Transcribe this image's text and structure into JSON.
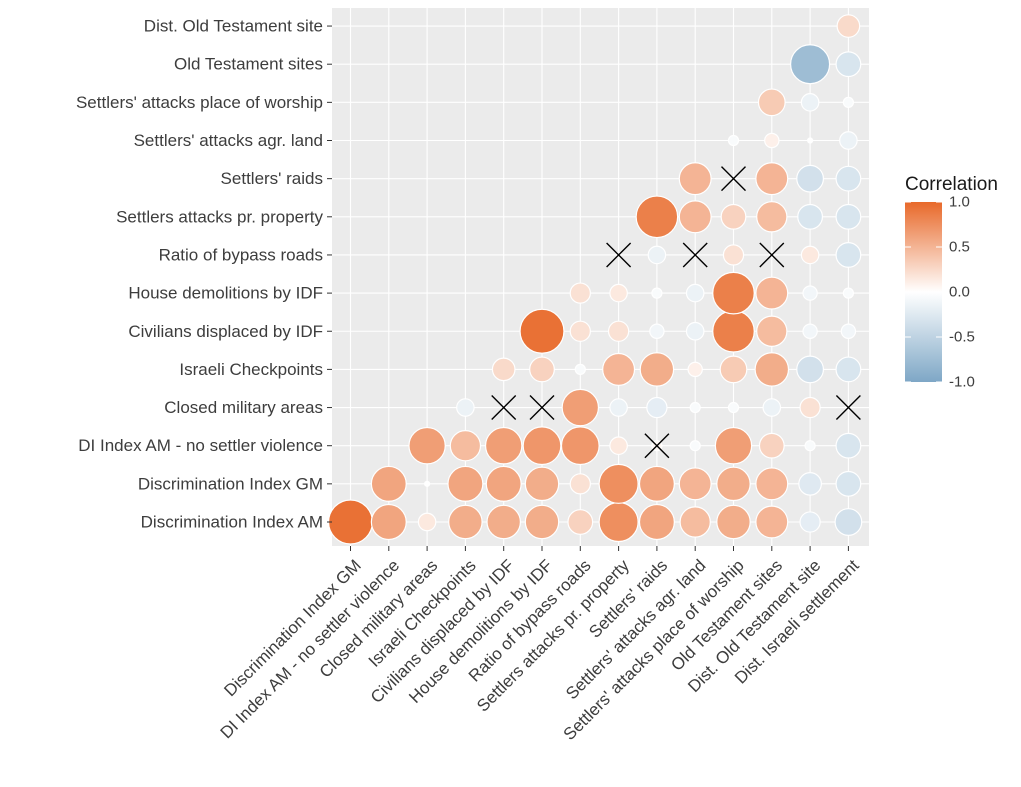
{
  "chart_data": {
    "type": "heatmap",
    "title": "",
    "xlabel": "",
    "ylabel": "",
    "row_labels": [
      "Discrimination Index AM",
      "Discrimination Index GM",
      "DI Index AM - no settler violence",
      "Closed military areas",
      "Israeli Checkpoints",
      "Civilians displaced by IDF",
      "House demolitions by IDF",
      "Ratio of bypass roads",
      "Settlers attacks pr. property",
      "Settlers' raids",
      "Settlers' attacks agr. land",
      "Settlers' attacks place of worship",
      "Old Testament sites",
      "Dist. Old Testament site"
    ],
    "column_labels": [
      "Discrimination Index GM",
      "DI Index AM - no settler violence",
      "Closed military areas",
      "Israeli Checkpoints",
      "Civilians displaced by IDF",
      "House demolitions by IDF",
      "Ratio of bypass roads",
      "Settlers attacks pr. property",
      "Settlers' raids",
      "Settlers' attacks agr. land",
      "Settlers' attacks place of worship",
      "Old Testament sites",
      "Dist. Old Testament site",
      "Dist. Israeli settlement"
    ],
    "note": "",
    "values": [
      [
        0.95,
        0.6,
        0.15,
        0.55,
        0.55,
        0.55,
        0.3,
        0.75,
        0.6,
        0.45,
        0.55,
        0.5,
        -0.2,
        -0.35
      ],
      [
        null,
        0.6,
        0.0,
        0.6,
        0.6,
        0.55,
        0.2,
        0.75,
        0.6,
        0.5,
        0.55,
        0.5,
        -0.25,
        -0.3
      ],
      [
        null,
        null,
        0.65,
        0.45,
        0.65,
        0.7,
        0.7,
        0.15,
        0.05,
        -0.05,
        0.65,
        0.3,
        -0.05,
        -0.3
      ],
      [
        null,
        null,
        null,
        -0.15,
        0.0,
        0.0,
        0.65,
        -0.15,
        -0.2,
        -0.05,
        -0.05,
        -0.15,
        0.2,
        0.0
      ],
      [
        null,
        null,
        null,
        null,
        0.25,
        0.3,
        -0.05,
        0.5,
        0.55,
        0.1,
        0.35,
        0.55,
        -0.35,
        -0.3
      ],
      [
        null,
        null,
        null,
        null,
        null,
        0.95,
        0.2,
        0.2,
        -0.1,
        -0.15,
        0.85,
        0.45,
        -0.1,
        -0.1
      ],
      [
        null,
        null,
        null,
        null,
        null,
        null,
        0.2,
        0.15,
        -0.05,
        -0.15,
        0.85,
        0.5,
        -0.1,
        -0.05
      ],
      [
        null,
        null,
        null,
        null,
        null,
        null,
        null,
        0.0,
        -0.15,
        0.0,
        0.2,
        0.0,
        0.15,
        -0.3
      ],
      [
        null,
        null,
        null,
        null,
        null,
        null,
        null,
        null,
        0.85,
        0.5,
        0.3,
        0.45,
        -0.3,
        -0.3
      ],
      [
        null,
        null,
        null,
        null,
        null,
        null,
        null,
        null,
        null,
        0.5,
        0.0,
        0.5,
        -0.35,
        -0.3
      ],
      [
        null,
        null,
        null,
        null,
        null,
        null,
        null,
        null,
        null,
        null,
        -0.05,
        0.1,
        0.0,
        -0.15
      ],
      [
        null,
        null,
        null,
        null,
        null,
        null,
        null,
        null,
        null,
        null,
        null,
        0.35,
        -0.15,
        -0.05
      ],
      [
        null,
        null,
        null,
        null,
        null,
        null,
        null,
        null,
        null,
        null,
        null,
        null,
        -0.75,
        -0.3
      ],
      [
        null,
        null,
        null,
        null,
        null,
        null,
        null,
        null,
        null,
        null,
        null,
        null,
        null,
        0.25
      ]
    ],
    "not_significant": [
      [
        3,
        4
      ],
      [
        3,
        5
      ],
      [
        3,
        13
      ],
      [
        2,
        8
      ],
      [
        7,
        7
      ],
      [
        7,
        9
      ],
      [
        7,
        11
      ],
      [
        9,
        10
      ]
    ],
    "legend": {
      "title": "Correlation",
      "ticks": [
        "1.0",
        "0.5",
        "0.0",
        "-0.5",
        "-1.0"
      ],
      "tick_values": [
        1.0,
        0.5,
        0.0,
        -0.5,
        -1.0
      ],
      "position": "right"
    },
    "colors": {
      "high": "#e8692a",
      "mid": "#ffffff",
      "low": "#7ea7c6",
      "panel_background": "#ebebeb",
      "grid": "#ffffff",
      "point_border": "#ffffff",
      "cross": "#000000"
    },
    "grid": true,
    "value_range": [
      -1,
      1
    ]
  }
}
